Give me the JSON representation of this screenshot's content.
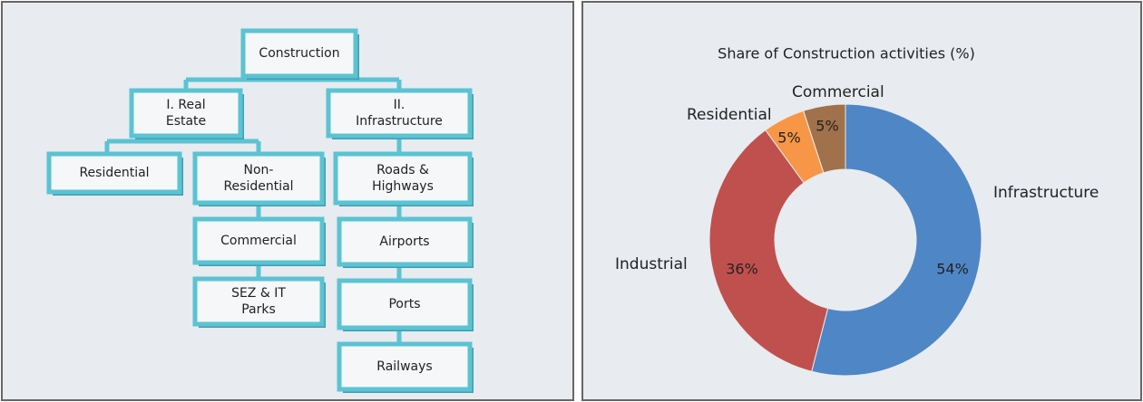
{
  "diagram": {
    "nodes": [
      {
        "lines": [
          "Construction"
        ]
      },
      {
        "lines": [
          "I. Real",
          "Estate"
        ]
      },
      {
        "lines": [
          "II.",
          "Infrastructure"
        ]
      },
      {
        "lines": [
          "Residential"
        ]
      },
      {
        "lines": [
          "Non-",
          "Residential"
        ]
      },
      {
        "lines": [
          "Commercial"
        ]
      },
      {
        "lines": [
          "SEZ & IT",
          "Parks"
        ]
      },
      {
        "lines": [
          "Roads &",
          "Highways"
        ]
      },
      {
        "lines": [
          "Airports"
        ]
      },
      {
        "lines": [
          "Ports"
        ]
      },
      {
        "lines": [
          "Railways"
        ]
      }
    ]
  },
  "chart_data": {
    "type": "donut",
    "title": "Share of Construction activities (%)",
    "categories": [
      "Infrastructure",
      "Industrial",
      "Residential",
      "Commercial"
    ],
    "values": [
      54,
      36,
      5,
      5
    ],
    "value_labels": [
      "54%",
      "36%",
      "5%",
      "5%"
    ],
    "colors": [
      "#4f86c6",
      "#c0504d",
      "#f79646",
      "#a0714a"
    ]
  }
}
